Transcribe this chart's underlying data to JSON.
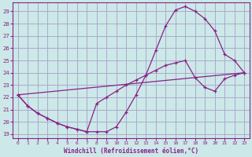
{
  "xlabel": "Windchill (Refroidissement éolien,°C)",
  "bg_color": "#cce8e8",
  "grid_color": "#aaaacc",
  "line_color": "#882288",
  "xlim_min": -0.5,
  "xlim_max": 23.5,
  "ylim_min": 18.7,
  "ylim_max": 29.7,
  "yticks": [
    19,
    20,
    21,
    22,
    23,
    24,
    25,
    26,
    27,
    28,
    29
  ],
  "xticks": [
    0,
    1,
    2,
    3,
    4,
    5,
    6,
    7,
    8,
    9,
    10,
    11,
    12,
    13,
    14,
    15,
    16,
    17,
    18,
    19,
    20,
    21,
    22,
    23
  ],
  "curve1_x": [
    0,
    1,
    2,
    3,
    4,
    5,
    6,
    7,
    8,
    9,
    10,
    11,
    12,
    13,
    14,
    15,
    16,
    17,
    18,
    19,
    20,
    21,
    22,
    23
  ],
  "curve1_y": [
    22.2,
    21.3,
    20.7,
    20.3,
    19.9,
    19.6,
    19.4,
    19.2,
    19.2,
    19.2,
    19.6,
    20.8,
    22.2,
    23.8,
    25.8,
    27.8,
    29.1,
    29.4,
    29.0,
    28.4,
    27.4,
    25.5,
    25.0,
    24.0
  ],
  "curve2_x": [
    0,
    1,
    2,
    3,
    4,
    5,
    6,
    7,
    8,
    9,
    10,
    11,
    12,
    13,
    14,
    15,
    16,
    17,
    18,
    19,
    20,
    21,
    22,
    23
  ],
  "curve2_y": [
    22.2,
    21.3,
    20.7,
    20.3,
    19.9,
    19.6,
    19.4,
    19.2,
    21.5,
    22.0,
    22.5,
    23.0,
    23.4,
    23.8,
    24.2,
    24.6,
    24.8,
    25.0,
    23.6,
    22.8,
    22.5,
    23.5,
    23.8,
    24.0
  ],
  "curve3_x": [
    0,
    23
  ],
  "curve3_y": [
    22.2,
    24.0
  ]
}
